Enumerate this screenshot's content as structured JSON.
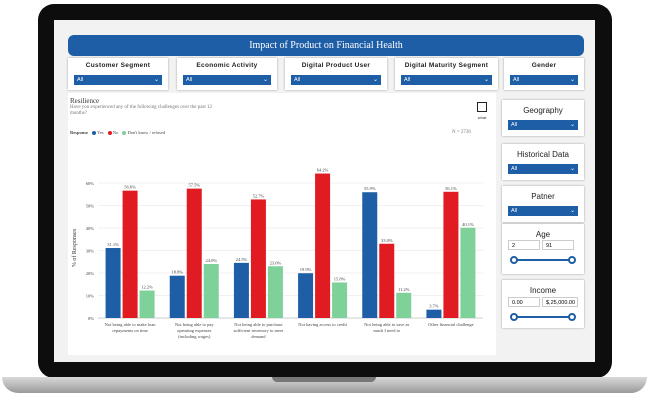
{
  "dashboard": {
    "title": "Impact of Product on Financial Health"
  },
  "filters": [
    {
      "label": "Customer Segment",
      "value": "All"
    },
    {
      "label": "Economic Activity",
      "value": "All"
    },
    {
      "label": "Digital Product User",
      "value": "All"
    },
    {
      "label": "Digital Maturity Segment",
      "value": "All"
    },
    {
      "label": "Gender",
      "value": "All"
    }
  ],
  "side": {
    "geography": {
      "label": "Geography",
      "value": "All"
    },
    "historical": {
      "label": "Historical Data",
      "value": "All"
    },
    "patner": {
      "label": "Patner",
      "value": "All"
    },
    "age": {
      "label": "Age",
      "min": "2",
      "max": "91"
    },
    "income": {
      "label": "Income",
      "min": "0.00",
      "max": "$,25,000.00"
    }
  },
  "panel": {
    "title": "Resilience",
    "subtitle": "Have you experienced any of the following challenges over the past 12 months?",
    "what_label": "what",
    "legend_title": "Response",
    "n_label": "N = 2736"
  },
  "chart_data": {
    "type": "bar",
    "ylabel": "% of Responses",
    "ylim": [
      0,
      60
    ],
    "yticks": [
      "0%",
      "10%",
      "20%",
      "30%",
      "40%",
      "50%",
      "60%"
    ],
    "categories": [
      [
        "Not being able to make loan",
        "repayments on time"
      ],
      [
        "Not being able to pay",
        "operating expenses",
        "(including wages)"
      ],
      [
        "Not being able to purchase",
        "sufficient inventory to meet",
        "demand"
      ],
      [
        "Not having access to credit"
      ],
      [
        "Not being able to save as",
        "much I need to"
      ],
      [
        "Other financial challenge"
      ]
    ],
    "series": [
      {
        "name": "Yes",
        "color": "#1d5ea6",
        "values": [
          31.1,
          18.8,
          24.5,
          19.9,
          55.9,
          3.7
        ],
        "labels": [
          "31.1%",
          "18.8%",
          "24.5%",
          "19.9%",
          "55.9%",
          "3.7%"
        ]
      },
      {
        "name": "No",
        "color": "#e11b22",
        "values": [
          56.6,
          57.5,
          52.7,
          64.2,
          33.0,
          56.1
        ],
        "labels": [
          "56.6%",
          "57.5%",
          "52.7%",
          "64.2%",
          "33.0%",
          "56.1%"
        ]
      },
      {
        "name": "Don't know / refused",
        "color": "#7fd19a",
        "values": [
          12.2,
          24.0,
          23.0,
          15.8,
          11.2,
          40.1
        ],
        "labels": [
          "12.2%",
          "24.0%",
          "23.0%",
          "15.8%",
          "11.2%",
          "40.1%"
        ]
      }
    ]
  },
  "colors": {
    "accent": "#1d5ea6",
    "yes": "#1d5ea6",
    "no": "#e11b22",
    "dk": "#7fd19a"
  }
}
